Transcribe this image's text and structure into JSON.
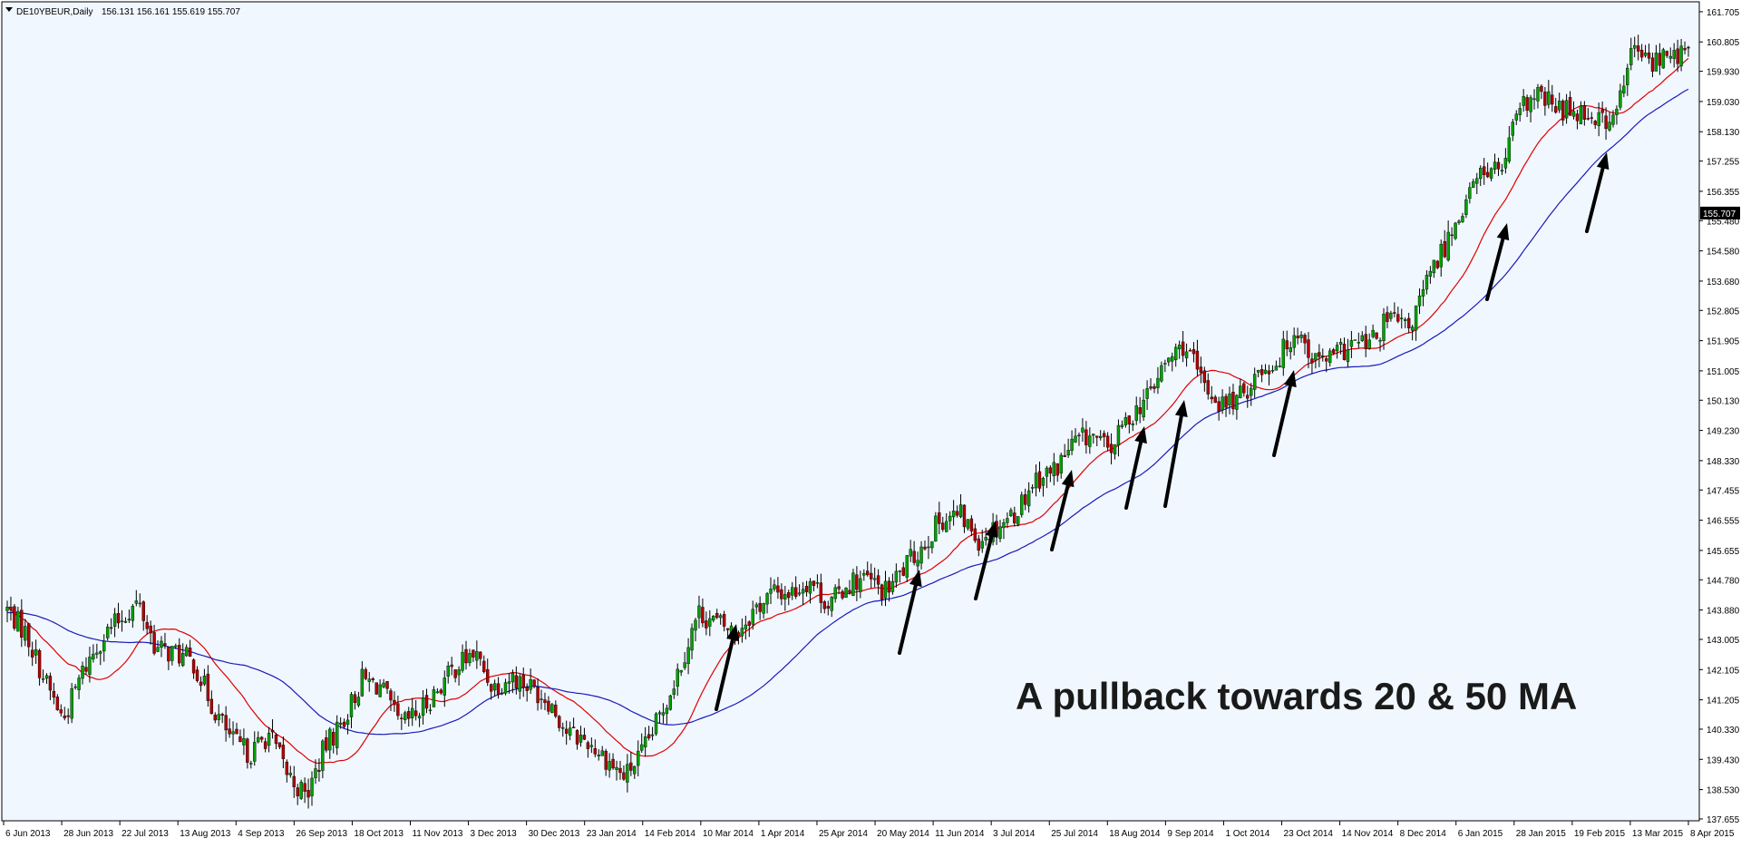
{
  "header": {
    "symbol": "DE10YBEUR,Daily",
    "ohlc": "156.131 156.161 155.619 155.707"
  },
  "annotation": "A pullback towards 20 & 50 MA",
  "chart_data": {
    "type": "candlestick",
    "ylim": [
      137.6,
      162.0
    ],
    "y_ticks": [
      "161.705",
      "160.805",
      "159.930",
      "159.030",
      "158.130",
      "157.255",
      "156.355",
      "155.480",
      "154.580",
      "153.680",
      "152.805",
      "151.905",
      "151.005",
      "150.130",
      "149.230",
      "148.330",
      "147.455",
      "146.555",
      "145.655",
      "144.780",
      "143.880",
      "143.005",
      "142.105",
      "141.205",
      "140.330",
      "139.430",
      "138.530",
      "137.655"
    ],
    "x_labels": [
      "6 Jun 2013",
      "28 Jun 2013",
      "22 Jul 2013",
      "13 Aug 2013",
      "4 Sep 2013",
      "26 Sep 2013",
      "18 Oct 2013",
      "11 Nov 2013",
      "3 Dec 2013",
      "30 Dec 2013",
      "23 Jan 2014",
      "14 Feb 2014",
      "10 Mar 2014",
      "1 Apr 2014",
      "25 Apr 2014",
      "20 May 2014",
      "11 Jun 2014",
      "3 Jul 2014",
      "25 Jul 2014",
      "18 Aug 2014",
      "9 Sep 2014",
      "1 Oct 2014",
      "23 Oct 2014",
      "14 Nov 2014",
      "8 Dec 2014",
      "6 Jan 2015",
      "28 Jan 2015",
      "19 Feb 2015",
      "13 Mar 2015",
      "8 Apr 2015"
    ],
    "current_price": "155.707",
    "price_path": [
      [
        0,
        143.9
      ],
      [
        1,
        143.2
      ],
      [
        2,
        141.8
      ],
      [
        3,
        140.6
      ],
      [
        4,
        142.0
      ],
      [
        5,
        143.0
      ],
      [
        6,
        143.6
      ],
      [
        7,
        144.1
      ],
      [
        8,
        142.7
      ],
      [
        9,
        142.6
      ],
      [
        10,
        142.3
      ],
      [
        11,
        141.0
      ],
      [
        12,
        140.0
      ],
      [
        13,
        139.6
      ],
      [
        14,
        140.2
      ],
      [
        15,
        139.0
      ],
      [
        16,
        138.3
      ],
      [
        17,
        139.8
      ],
      [
        18,
        140.6
      ],
      [
        19,
        141.8
      ],
      [
        20,
        141.6
      ],
      [
        21,
        140.4
      ],
      [
        22,
        140.8
      ],
      [
        23,
        141.5
      ],
      [
        24,
        142.2
      ],
      [
        25,
        142.6
      ],
      [
        26,
        141.6
      ],
      [
        27,
        141.9
      ],
      [
        28,
        141.6
      ],
      [
        29,
        141.2
      ],
      [
        30,
        140.2
      ],
      [
        31,
        140.0
      ],
      [
        32,
        139.5
      ],
      [
        33,
        138.9
      ],
      [
        34,
        139.6
      ],
      [
        35,
        140.8
      ],
      [
        36,
        142.2
      ],
      [
        37,
        143.8
      ],
      [
        38,
        143.5
      ],
      [
        39,
        143.2
      ],
      [
        40,
        143.9
      ],
      [
        41,
        144.4
      ],
      [
        42,
        144.4
      ],
      [
        43,
        144.8
      ],
      [
        44,
        144.0
      ],
      [
        45,
        144.7
      ],
      [
        46,
        144.8
      ],
      [
        47,
        144.4
      ],
      [
        48,
        145.1
      ],
      [
        49,
        145.8
      ],
      [
        50,
        146.6
      ],
      [
        51,
        146.7
      ],
      [
        52,
        146.0
      ],
      [
        53,
        146.4
      ],
      [
        54,
        146.8
      ],
      [
        55,
        147.8
      ],
      [
        56,
        148.0
      ],
      [
        57,
        148.8
      ],
      [
        58,
        149.1
      ],
      [
        59,
        148.6
      ],
      [
        60,
        149.6
      ],
      [
        61,
        150.2
      ],
      [
        62,
        151.2
      ],
      [
        63,
        151.8
      ],
      [
        64,
        150.6
      ],
      [
        65,
        150.0
      ],
      [
        66,
        150.2
      ],
      [
        67,
        151.0
      ],
      [
        68,
        151.3
      ],
      [
        69,
        152.3
      ],
      [
        70,
        151.3
      ],
      [
        71,
        151.4
      ],
      [
        72,
        151.8
      ],
      [
        73,
        151.8
      ],
      [
        74,
        152.6
      ],
      [
        75,
        152.2
      ],
      [
        76,
        153.6
      ],
      [
        77,
        154.8
      ],
      [
        78,
        156.0
      ],
      [
        79,
        157.0
      ],
      [
        80,
        157.0
      ],
      [
        81,
        158.8
      ],
      [
        82,
        159.2
      ],
      [
        83,
        158.8
      ],
      [
        84,
        158.8
      ],
      [
        85,
        158.6
      ],
      [
        86,
        158.4
      ],
      [
        87,
        160.6
      ],
      [
        88,
        160.2
      ],
      [
        89,
        160.4
      ],
      [
        90,
        160.5
      ]
    ],
    "series": [
      {
        "type": "line",
        "name": "",
        "color": "#e00000",
        "period": 20
      },
      {
        "type": "line",
        "name": "",
        "color": "#1a1ab8",
        "period": 50,
        "start": [
          141.2,
          143.8
        ]
      }
    ],
    "colors": {
      "up": "#00a000",
      "down": "#b00000",
      "background": "#f0f7ff",
      "axis": "#000000",
      "arrow": "#000000"
    }
  }
}
